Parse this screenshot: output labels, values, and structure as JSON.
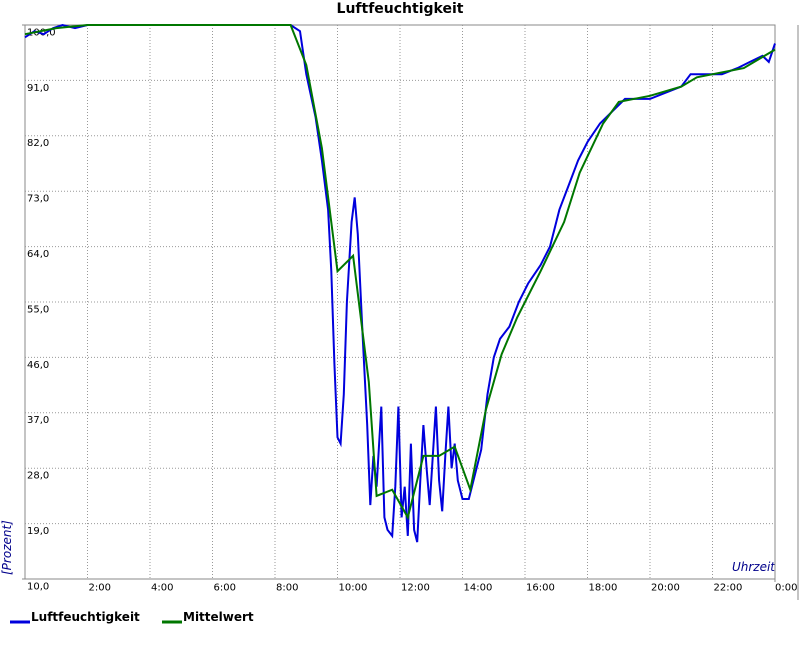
{
  "chart_data": {
    "type": "line",
    "title": "Luftfeuchtigkeit",
    "x_label": "Uhrzeit",
    "y_label": "[Prozent]",
    "xlim": [
      0,
      24
    ],
    "ylim": [
      10,
      100
    ],
    "xticks": [
      {
        "value": 2,
        "label": "2:00"
      },
      {
        "value": 4,
        "label": "4:00"
      },
      {
        "value": 6,
        "label": "6:00"
      },
      {
        "value": 8,
        "label": "8:00"
      },
      {
        "value": 10,
        "label": "10:00"
      },
      {
        "value": 12,
        "label": "12:00"
      },
      {
        "value": 14,
        "label": "14:00"
      },
      {
        "value": 16,
        "label": "16:00"
      },
      {
        "value": 18,
        "label": "18:00"
      },
      {
        "value": 20,
        "label": "20:00"
      },
      {
        "value": 22,
        "label": "22:00"
      },
      {
        "value": 24,
        "label": "0:00"
      }
    ],
    "yticks": [
      {
        "value": 10,
        "label": "10,0"
      },
      {
        "value": 19,
        "label": "19,0"
      },
      {
        "value": 28,
        "label": "28,0"
      },
      {
        "value": 37,
        "label": "37,0"
      },
      {
        "value": 46,
        "label": "46,0"
      },
      {
        "value": 55,
        "label": "55,0"
      },
      {
        "value": 64,
        "label": "64,0"
      },
      {
        "value": 73,
        "label": "73,0"
      },
      {
        "value": 82,
        "label": "82,0"
      },
      {
        "value": 91,
        "label": "91,0"
      },
      {
        "value": 100,
        "label": "100,0"
      }
    ],
    "grid": true,
    "series": [
      {
        "name": "Luftfeuchtigkeit",
        "color": "#0000dd",
        "x": [
          0,
          0.3,
          0.6,
          0.9,
          1.2,
          1.6,
          2,
          8.5,
          8.8,
          9.0,
          9.3,
          9.5,
          9.7,
          9.8,
          9.9,
          10.0,
          10.1,
          10.2,
          10.3,
          10.45,
          10.55,
          10.65,
          10.8,
          10.95,
          11.05,
          11.15,
          11.25,
          11.4,
          11.5,
          11.6,
          11.75,
          11.85,
          11.95,
          12.05,
          12.15,
          12.25,
          12.35,
          12.45,
          12.55,
          12.65,
          12.75,
          12.85,
          12.95,
          13.05,
          13.15,
          13.25,
          13.35,
          13.45,
          13.55,
          13.65,
          13.75,
          13.85,
          14.0,
          14.2,
          14.4,
          14.6,
          14.8,
          15.0,
          15.2,
          15.5,
          15.8,
          16.1,
          16.5,
          16.8,
          17.1,
          17.4,
          17.7,
          18.0,
          18.4,
          18.8,
          19.2,
          19.6,
          20,
          20.5,
          21,
          21.3,
          21.8,
          22.3,
          22.8,
          23.2,
          23.6,
          23.8,
          24
        ],
        "values": [
          98,
          99,
          98.5,
          99.5,
          100,
          99.5,
          100,
          100,
          99,
          92,
          85,
          78,
          70,
          60,
          45,
          33,
          32,
          40,
          55,
          68,
          72,
          66,
          50,
          35,
          22,
          30,
          25,
          38,
          20,
          18,
          17,
          25,
          38,
          20,
          25,
          17,
          32,
          18,
          16,
          26,
          35,
          28,
          22,
          30,
          38,
          26,
          21,
          30,
          38,
          28,
          32,
          26,
          23,
          23,
          27,
          31,
          40,
          46,
          49,
          51,
          55,
          58,
          61,
          64,
          70,
          74,
          78,
          81,
          84,
          86,
          88,
          88,
          88,
          89,
          90,
          92,
          92,
          92,
          93,
          94,
          95,
          94,
          97
        ]
      },
      {
        "name": "Mittelwert",
        "color": "#007700",
        "x": [
          0,
          1,
          2,
          8.5,
          9,
          9.5,
          10,
          10.5,
          11,
          11.25,
          11.75,
          12.25,
          12.75,
          13.25,
          13.75,
          14.25,
          14.75,
          15.25,
          15.75,
          16.5,
          17.25,
          17.75,
          18.5,
          19,
          20,
          21,
          21.5,
          23,
          24
        ],
        "values": [
          98.5,
          99.5,
          100,
          100,
          93.5,
          80,
          60,
          62.5,
          42,
          23.5,
          24.5,
          20,
          30,
          30,
          31.5,
          24.5,
          37.5,
          46.5,
          52.5,
          60,
          68,
          76,
          84,
          87.5,
          88.5,
          90,
          91.5,
          93,
          96
        ]
      }
    ]
  }
}
